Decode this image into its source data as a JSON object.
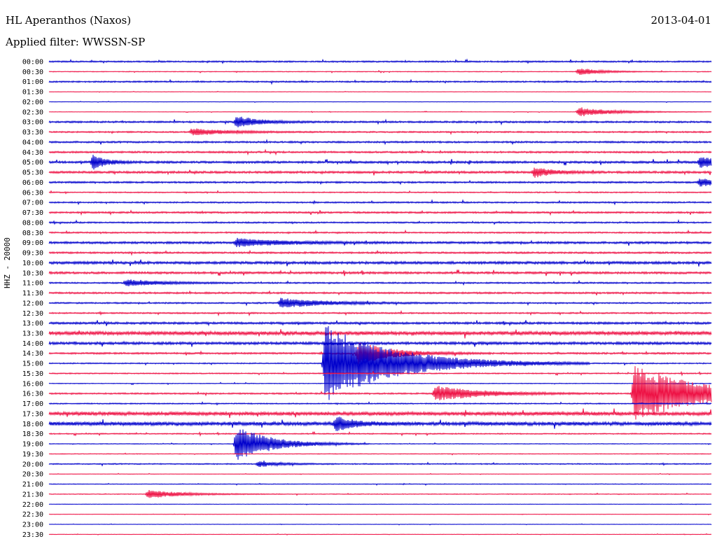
{
  "header": {
    "station": "HL Aperanthos (Naxos)",
    "date": "2013-04-01",
    "filter": "Applied filter: WWSSN-SP"
  },
  "chart_data": {
    "type": "line",
    "title": "HL Aperanthos (Naxos)",
    "ylabel": "HHZ - 20000",
    "colors": {
      "even_row": "#0000cc",
      "odd_row": "#ee1144"
    },
    "rows": [
      "00:00",
      "00:30",
      "01:00",
      "01:30",
      "02:00",
      "02:30",
      "03:00",
      "03:30",
      "04:00",
      "04:30",
      "05:00",
      "05:30",
      "06:00",
      "06:30",
      "07:00",
      "07:30",
      "08:00",
      "08:30",
      "09:00",
      "09:30",
      "10:00",
      "10:30",
      "11:00",
      "11:30",
      "12:00",
      "12:30",
      "13:00",
      "13:30",
      "14:00",
      "14:30",
      "15:00",
      "15:30",
      "16:00",
      "16:30",
      "17:00",
      "17:30",
      "18:00",
      "18:30",
      "19:00",
      "19:30",
      "20:00",
      "20:30",
      "21:00",
      "21:30",
      "22:00",
      "22:30",
      "23:00",
      "23:30"
    ],
    "noise_level": [
      1,
      0.5,
      1,
      0.3,
      0.3,
      0.3,
      1.2,
      1,
      1.2,
      1.2,
      1.5,
      1.5,
      1.2,
      0.8,
      1,
      1.2,
      1,
      1,
      1.5,
      1.2,
      1.8,
      1.5,
      1,
      1.2,
      1,
      1,
      1.5,
      2.5,
      1.8,
      1.2,
      0.8,
      0.8,
      0.5,
      1,
      0.8,
      2.5,
      2.5,
      0.8,
      0.5,
      0.5,
      0.8,
      0.3,
      0.5,
      0.5,
      0.3,
      0.3,
      0.3,
      0.3
    ],
    "events": [
      {
        "row": 1,
        "minute": 24,
        "amp": 5,
        "dur": 1
      },
      {
        "row": 5,
        "minute": 24,
        "amp": 7,
        "dur": 1.5
      },
      {
        "row": 6,
        "minute": 8.5,
        "amp": 8,
        "dur": 1
      },
      {
        "row": 7,
        "minute": 6.5,
        "amp": 5,
        "dur": 1.5
      },
      {
        "row": 10,
        "minute": 2,
        "amp": 10,
        "dur": 0.6
      },
      {
        "row": 10,
        "minute": 29.5,
        "amp": 8,
        "dur": 1
      },
      {
        "row": 11,
        "minute": 22,
        "amp": 7,
        "dur": 0.8
      },
      {
        "row": 12,
        "minute": 29.5,
        "amp": 6,
        "dur": 0.8
      },
      {
        "row": 18,
        "minute": 8.5,
        "amp": 6,
        "dur": 2
      },
      {
        "row": 22,
        "minute": 3.5,
        "amp": 5,
        "dur": 1.5
      },
      {
        "row": 24,
        "minute": 10.5,
        "amp": 7,
        "dur": 2
      },
      {
        "row": 29,
        "minute": 14,
        "amp": 16,
        "dur": 1.5
      },
      {
        "row": 30,
        "minute": 12.5,
        "amp": 56,
        "dur": 3
      },
      {
        "row": 33,
        "minute": 17.5,
        "amp": 11,
        "dur": 2
      },
      {
        "row": 33,
        "minute": 26.5,
        "amp": 40,
        "dur": 3
      },
      {
        "row": 36,
        "minute": 13,
        "amp": 10,
        "dur": 0.8
      },
      {
        "row": 38,
        "minute": 8.5,
        "amp": 26,
        "dur": 1.5
      },
      {
        "row": 40,
        "minute": 9.5,
        "amp": 4,
        "dur": 1
      },
      {
        "row": 43,
        "minute": 4.5,
        "amp": 6,
        "dur": 1.5
      }
    ],
    "grid": false
  }
}
